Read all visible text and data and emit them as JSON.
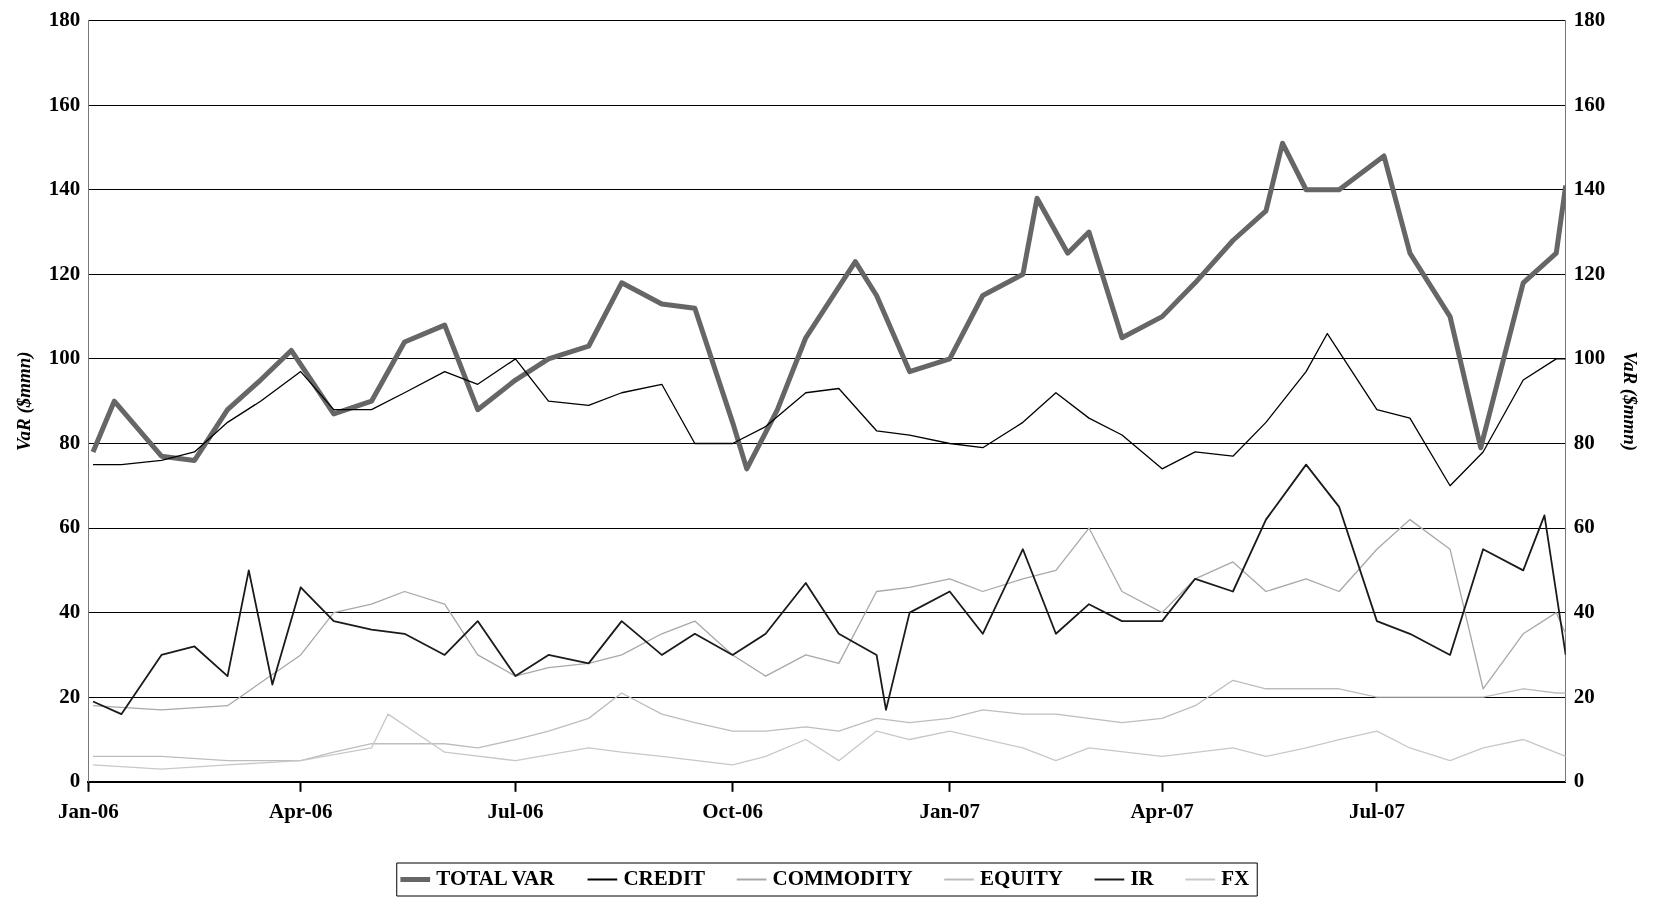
{
  "chart_data": {
    "type": "line",
    "ylabel": "VaR ($mmn)",
    "y2label": "VaR ($mmn)",
    "xlim": [
      "2006-01-01",
      "2007-09-19"
    ],
    "xticks": [
      {
        "value": "2006-01-01",
        "label": "Jan-06"
      },
      {
        "value": "2006-04-01",
        "label": "Apr-06"
      },
      {
        "value": "2006-07-01",
        "label": "Jul-06"
      },
      {
        "value": "2006-10-01",
        "label": "Oct-06"
      },
      {
        "value": "2007-01-01",
        "label": "Jan-07"
      },
      {
        "value": "2007-04-01",
        "label": "Apr-07"
      },
      {
        "value": "2007-07-01",
        "label": "Jul-07"
      }
    ],
    "ylim": [
      0,
      180
    ],
    "yticks": [
      0,
      20,
      40,
      60,
      80,
      100,
      120,
      140,
      160,
      180
    ],
    "y2lim": [
      0,
      180
    ],
    "y2ticks": [
      0,
      20,
      40,
      60,
      80,
      100,
      120,
      140,
      160,
      180
    ],
    "grid": "y",
    "legend": "bottom",
    "series": [
      {
        "name": "TOTAL VAR",
        "color": "#666666",
        "x": [
          "2006-01-03",
          "2006-01-12",
          "2006-02-01",
          "2006-02-15",
          "2006-03-01",
          "2006-03-15",
          "2006-03-28",
          "2006-04-15",
          "2006-05-01",
          "2006-05-15",
          "2006-06-01",
          "2006-06-15",
          "2006-07-01",
          "2006-07-15",
          "2006-08-01",
          "2006-08-15",
          "2006-09-01",
          "2006-09-15",
          "2006-10-01",
          "2006-10-07",
          "2006-10-20",
          "2006-11-01",
          "2006-11-22",
          "2006-12-01",
          "2006-12-15",
          "2007-01-01",
          "2007-01-15",
          "2007-02-01",
          "2007-02-07",
          "2007-02-20",
          "2007-03-01",
          "2007-03-15",
          "2007-04-01",
          "2007-04-15",
          "2007-05-01",
          "2007-05-15",
          "2007-05-22",
          "2007-06-01",
          "2007-06-15",
          "2007-07-04",
          "2007-07-15",
          "2007-08-01",
          "2007-08-14",
          "2007-09-01",
          "2007-09-15",
          "2007-09-19"
        ],
        "values": [
          78,
          90,
          77,
          76,
          88,
          95,
          102,
          87,
          90,
          104,
          108,
          88,
          95,
          100,
          103,
          118,
          113,
          112,
          85,
          74,
          88,
          105,
          123,
          115,
          97,
          100,
          115,
          120,
          138,
          125,
          130,
          105,
          110,
          118,
          128,
          135,
          151,
          140,
          140,
          148,
          125,
          110,
          79,
          118,
          125,
          141
        ]
      },
      {
        "name": "CREDIT",
        "color": "#000000",
        "x": [
          "2006-01-03",
          "2006-01-15",
          "2006-02-01",
          "2006-02-15",
          "2006-03-01",
          "2006-03-15",
          "2006-04-01",
          "2006-04-15",
          "2006-05-01",
          "2006-05-15",
          "2006-06-01",
          "2006-06-15",
          "2006-07-01",
          "2006-07-15",
          "2006-08-01",
          "2006-08-15",
          "2006-09-01",
          "2006-09-15",
          "2006-10-01",
          "2006-10-15",
          "2006-11-01",
          "2006-11-15",
          "2006-12-01",
          "2006-12-15",
          "2007-01-01",
          "2007-01-15",
          "2007-02-01",
          "2007-02-15",
          "2007-03-01",
          "2007-03-15",
          "2007-04-01",
          "2007-04-15",
          "2007-05-01",
          "2007-05-15",
          "2007-06-01",
          "2007-06-10",
          "2007-07-01",
          "2007-07-15",
          "2007-08-01",
          "2007-08-15",
          "2007-09-01",
          "2007-09-15",
          "2007-09-19"
        ],
        "values": [
          75,
          75,
          76,
          78,
          85,
          90,
          97,
          88,
          88,
          92,
          97,
          94,
          100,
          90,
          89,
          92,
          94,
          80,
          80,
          84,
          92,
          93,
          83,
          82,
          80,
          79,
          85,
          92,
          86,
          82,
          74,
          78,
          77,
          85,
          97,
          106,
          88,
          86,
          70,
          78,
          95,
          100,
          100
        ]
      },
      {
        "name": "COMMODITY",
        "color": "#a8a8a8",
        "x": [
          "2006-01-03",
          "2006-02-01",
          "2006-03-01",
          "2006-04-01",
          "2006-04-15",
          "2006-05-01",
          "2006-05-15",
          "2006-06-01",
          "2006-06-15",
          "2006-07-01",
          "2006-07-15",
          "2006-08-01",
          "2006-08-15",
          "2006-09-01",
          "2006-09-15",
          "2006-10-01",
          "2006-10-15",
          "2006-11-01",
          "2006-11-15",
          "2006-12-01",
          "2006-12-15",
          "2007-01-01",
          "2007-01-15",
          "2007-02-01",
          "2007-02-15",
          "2007-03-01",
          "2007-03-15",
          "2007-04-01",
          "2007-04-15",
          "2007-05-01",
          "2007-05-15",
          "2007-06-01",
          "2007-06-15",
          "2007-07-01",
          "2007-07-15",
          "2007-08-01",
          "2007-08-15",
          "2007-09-01",
          "2007-09-15",
          "2007-09-19"
        ],
        "values": [
          18,
          17,
          18,
          30,
          40,
          42,
          45,
          42,
          30,
          25,
          27,
          28,
          30,
          35,
          38,
          30,
          25,
          30,
          28,
          45,
          46,
          48,
          45,
          48,
          50,
          60,
          45,
          40,
          48,
          52,
          45,
          48,
          45,
          55,
          62,
          55,
          22,
          35,
          40,
          35
        ]
      },
      {
        "name": "EQUITY",
        "color": "#bdbdbd",
        "x": [
          "2006-01-03",
          "2006-02-01",
          "2006-03-01",
          "2006-04-01",
          "2006-04-15",
          "2006-05-01",
          "2006-05-15",
          "2006-06-01",
          "2006-06-15",
          "2006-07-01",
          "2006-07-15",
          "2006-08-01",
          "2006-08-15",
          "2006-09-01",
          "2006-09-15",
          "2006-10-01",
          "2006-10-15",
          "2006-11-01",
          "2006-11-15",
          "2006-12-01",
          "2006-12-15",
          "2007-01-01",
          "2007-01-15",
          "2007-02-01",
          "2007-02-15",
          "2007-03-01",
          "2007-03-15",
          "2007-04-01",
          "2007-04-15",
          "2007-05-01",
          "2007-05-15",
          "2007-06-01",
          "2007-06-15",
          "2007-07-01",
          "2007-07-15",
          "2007-08-01",
          "2007-08-15",
          "2007-09-01",
          "2007-09-15",
          "2007-09-19"
        ],
        "values": [
          6,
          6,
          5,
          5,
          7,
          9,
          9,
          9,
          8,
          10,
          12,
          15,
          21,
          16,
          14,
          12,
          12,
          13,
          12,
          15,
          14,
          15,
          17,
          16,
          16,
          15,
          14,
          15,
          18,
          24,
          22,
          22,
          22,
          20,
          20,
          20,
          20,
          22,
          21,
          21
        ]
      },
      {
        "name": "IR",
        "color": "#1a1a1a",
        "x": [
          "2006-01-03",
          "2006-01-15",
          "2006-02-01",
          "2006-02-15",
          "2006-03-01",
          "2006-03-10",
          "2006-03-20",
          "2006-04-01",
          "2006-04-15",
          "2006-05-01",
          "2006-05-15",
          "2006-06-01",
          "2006-06-15",
          "2006-07-01",
          "2006-07-15",
          "2006-08-01",
          "2006-08-15",
          "2006-09-01",
          "2006-09-15",
          "2006-10-01",
          "2006-10-15",
          "2006-11-01",
          "2006-11-15",
          "2006-12-01",
          "2006-12-05",
          "2006-12-15",
          "2007-01-01",
          "2007-01-15",
          "2007-02-01",
          "2007-02-15",
          "2007-03-01",
          "2007-03-15",
          "2007-04-01",
          "2007-04-15",
          "2007-05-01",
          "2007-05-15",
          "2007-06-01",
          "2007-06-15",
          "2007-07-01",
          "2007-07-15",
          "2007-08-01",
          "2007-08-15",
          "2007-09-01",
          "2007-09-10",
          "2007-09-19"
        ],
        "values": [
          19,
          16,
          30,
          32,
          25,
          50,
          23,
          46,
          38,
          36,
          35,
          30,
          38,
          25,
          30,
          28,
          38,
          30,
          35,
          30,
          35,
          47,
          35,
          30,
          17,
          40,
          45,
          35,
          55,
          35,
          42,
          38,
          38,
          48,
          45,
          62,
          75,
          65,
          38,
          35,
          30,
          55,
          50,
          63,
          30
        ]
      },
      {
        "name": "FX",
        "color": "#c8c8c8",
        "x": [
          "2006-01-03",
          "2006-02-01",
          "2006-03-01",
          "2006-04-01",
          "2006-05-01",
          "2006-05-08",
          "2006-06-01",
          "2006-07-01",
          "2006-08-01",
          "2006-08-15",
          "2006-09-01",
          "2006-10-01",
          "2006-10-15",
          "2006-11-01",
          "2006-11-15",
          "2006-12-01",
          "2006-12-15",
          "2007-01-01",
          "2007-02-01",
          "2007-02-15",
          "2007-03-01",
          "2007-04-01",
          "2007-05-01",
          "2007-05-15",
          "2007-06-01",
          "2007-06-15",
          "2007-07-01",
          "2007-07-15",
          "2007-08-01",
          "2007-08-15",
          "2007-09-01",
          "2007-09-19"
        ],
        "values": [
          4,
          3,
          4,
          5,
          8,
          16,
          7,
          5,
          8,
          7,
          6,
          4,
          6,
          10,
          5,
          12,
          10,
          12,
          8,
          5,
          8,
          6,
          8,
          6,
          8,
          10,
          12,
          8,
          5,
          8,
          10,
          6
        ]
      }
    ]
  }
}
